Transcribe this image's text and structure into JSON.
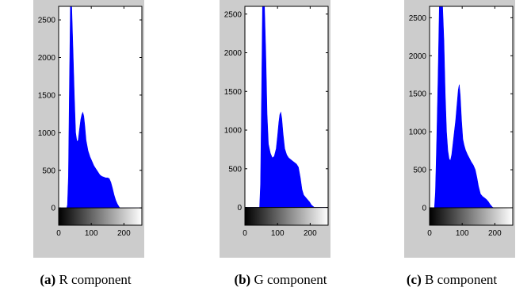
{
  "chart_data": [
    {
      "type": "histogram",
      "color": "#0000ff",
      "x_ticks": [
        0,
        100,
        200
      ],
      "y_ticks": [
        0,
        500,
        1000,
        1500,
        2000,
        2500
      ],
      "xlim": [
        0,
        255
      ],
      "ylim": [
        -230,
        2680
      ],
      "curve": [
        [
          0,
          0
        ],
        [
          25,
          0
        ],
        [
          27,
          40
        ],
        [
          30,
          420
        ],
        [
          33,
          1600
        ],
        [
          36,
          2680
        ],
        [
          40,
          2680
        ],
        [
          44,
          2100
        ],
        [
          48,
          1500
        ],
        [
          52,
          1000
        ],
        [
          56,
          880
        ],
        [
          60,
          900
        ],
        [
          64,
          1050
        ],
        [
          68,
          1180
        ],
        [
          71,
          1240
        ],
        [
          74,
          1270
        ],
        [
          77,
          1220
        ],
        [
          80,
          1100
        ],
        [
          84,
          900
        ],
        [
          90,
          760
        ],
        [
          96,
          680
        ],
        [
          102,
          620
        ],
        [
          108,
          560
        ],
        [
          114,
          520
        ],
        [
          120,
          480
        ],
        [
          126,
          440
        ],
        [
          132,
          420
        ],
        [
          138,
          410
        ],
        [
          144,
          400
        ],
        [
          150,
          400
        ],
        [
          155,
          390
        ],
        [
          160,
          340
        ],
        [
          165,
          260
        ],
        [
          170,
          170
        ],
        [
          175,
          100
        ],
        [
          180,
          50
        ],
        [
          185,
          15
        ],
        [
          188,
          0
        ],
        [
          255,
          0
        ]
      ],
      "caption_tag": "(a)",
      "caption_text": " R component"
    },
    {
      "type": "histogram",
      "color": "#0000ff",
      "x_ticks": [
        0,
        100,
        200
      ],
      "y_ticks": [
        0,
        500,
        1000,
        1500,
        2000,
        2500
      ],
      "xlim": [
        0,
        255
      ],
      "ylim": [
        -230,
        2600
      ],
      "curve": [
        [
          0,
          0
        ],
        [
          45,
          0
        ],
        [
          48,
          300
        ],
        [
          51,
          1400
        ],
        [
          54,
          2600
        ],
        [
          60,
          2600
        ],
        [
          64,
          2000
        ],
        [
          68,
          1200
        ],
        [
          72,
          820
        ],
        [
          78,
          700
        ],
        [
          84,
          640
        ],
        [
          90,
          660
        ],
        [
          96,
          760
        ],
        [
          100,
          920
        ],
        [
          104,
          1100
        ],
        [
          107,
          1200
        ],
        [
          110,
          1230
        ],
        [
          113,
          1150
        ],
        [
          117,
          950
        ],
        [
          122,
          760
        ],
        [
          128,
          680
        ],
        [
          134,
          640
        ],
        [
          140,
          620
        ],
        [
          146,
          600
        ],
        [
          152,
          580
        ],
        [
          158,
          560
        ],
        [
          164,
          520
        ],
        [
          170,
          380
        ],
        [
          175,
          230
        ],
        [
          180,
          160
        ],
        [
          186,
          130
        ],
        [
          192,
          100
        ],
        [
          198,
          70
        ],
        [
          204,
          30
        ],
        [
          210,
          10
        ],
        [
          213,
          0
        ],
        [
          255,
          0
        ]
      ],
      "caption_tag": "(b)",
      "caption_text": " G component"
    },
    {
      "type": "histogram",
      "color": "#0000ff",
      "x_ticks": [
        0,
        100,
        200
      ],
      "y_ticks": [
        0,
        500,
        1000,
        1500,
        2000,
        2500
      ],
      "xlim": [
        0,
        255
      ],
      "ylim": [
        -230,
        2650
      ],
      "curve": [
        [
          0,
          0
        ],
        [
          15,
          0
        ],
        [
          18,
          200
        ],
        [
          22,
          900
        ],
        [
          26,
          1700
        ],
        [
          30,
          2650
        ],
        [
          40,
          2650
        ],
        [
          44,
          2200
        ],
        [
          48,
          1500
        ],
        [
          52,
          1000
        ],
        [
          56,
          750
        ],
        [
          60,
          640
        ],
        [
          64,
          620
        ],
        [
          68,
          700
        ],
        [
          72,
          850
        ],
        [
          76,
          1000
        ],
        [
          80,
          1150
        ],
        [
          84,
          1350
        ],
        [
          88,
          1550
        ],
        [
          91,
          1620
        ],
        [
          94,
          1480
        ],
        [
          98,
          1150
        ],
        [
          102,
          900
        ],
        [
          106,
          820
        ],
        [
          110,
          760
        ],
        [
          116,
          700
        ],
        [
          122,
          650
        ],
        [
          128,
          600
        ],
        [
          134,
          560
        ],
        [
          140,
          500
        ],
        [
          145,
          400
        ],
        [
          150,
          280
        ],
        [
          156,
          180
        ],
        [
          162,
          150
        ],
        [
          168,
          130
        ],
        [
          174,
          110
        ],
        [
          180,
          80
        ],
        [
          186,
          40
        ],
        [
          192,
          10
        ],
        [
          196,
          0
        ],
        [
          255,
          0
        ]
      ],
      "caption_tag": "(c)",
      "caption_text": " B component"
    }
  ]
}
